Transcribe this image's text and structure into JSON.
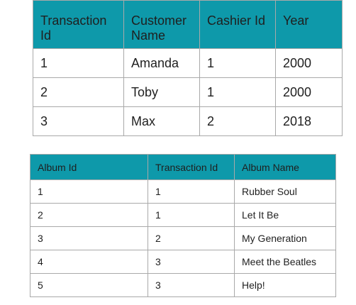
{
  "transactions_table": {
    "headers": [
      "Transaction Id",
      "Customer Name",
      "Cashier Id",
      "Year"
    ],
    "rows": [
      [
        "1",
        "Amanda",
        "1",
        "2000"
      ],
      [
        "2",
        "Toby",
        "1",
        "2000"
      ],
      [
        "3",
        "Max",
        "2",
        "2018"
      ]
    ]
  },
  "albums_table": {
    "headers": [
      "Album Id",
      "Transaction Id",
      "Album Name"
    ],
    "rows": [
      [
        "1",
        "1",
        "Rubber Soul"
      ],
      [
        "2",
        "1",
        "Let It Be"
      ],
      [
        "3",
        "2",
        "My Generation"
      ],
      [
        "4",
        "3",
        "Meet the Beatles"
      ],
      [
        "5",
        "3",
        "Help!"
      ]
    ]
  },
  "colors": {
    "header_background": "#0e99aa",
    "border": "#a9a9a9"
  }
}
